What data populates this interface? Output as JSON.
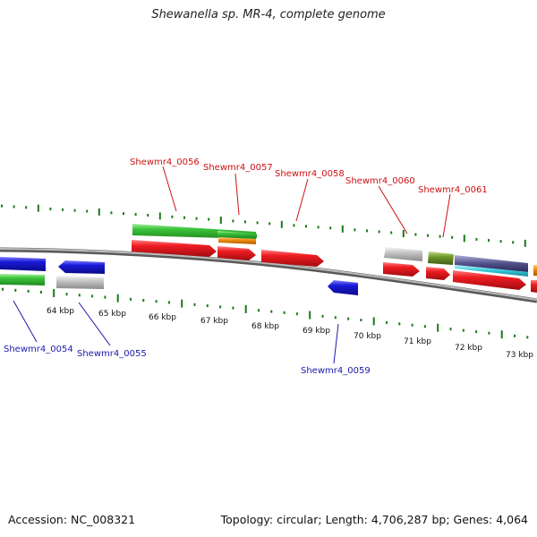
{
  "title": "Shewanella sp. MR-4, complete genome",
  "accession": "Accession: NC_008321",
  "summary": "Topology: circular; Length: 4,706,287 bp; Genes: 4,064",
  "colors": {
    "label_top": "#cc1111",
    "label_bottom": "#1a1aaa",
    "tick": "#1a7a1a",
    "backbone": "#8a8a8a",
    "red": "#e8121a",
    "green": "#3cc43c",
    "orange": "#f08c10",
    "grey": "#c4c4c4",
    "blue": "#1a1ad8",
    "olive": "#6e9a2a",
    "cyan": "#30c8d8",
    "navy": "#50508a"
  },
  "axis_labels": [
    "64 kbp",
    "65 kbp",
    "66 kbp",
    "67 kbp",
    "68 kbp",
    "69 kbp",
    "70 kbp",
    "71 kbp",
    "72 kbp",
    "73 kbp"
  ],
  "gene_labels_top": [
    "Shewmr4_0056",
    "Shewmr4_0057",
    "Shewmr4_0058",
    "Shewmr4_0060",
    "Shewmr4_0061"
  ],
  "gene_labels_bottom": [
    "Shewmr4_0054",
    "Shewmr4_0055",
    "Shewmr4_0059"
  ]
}
